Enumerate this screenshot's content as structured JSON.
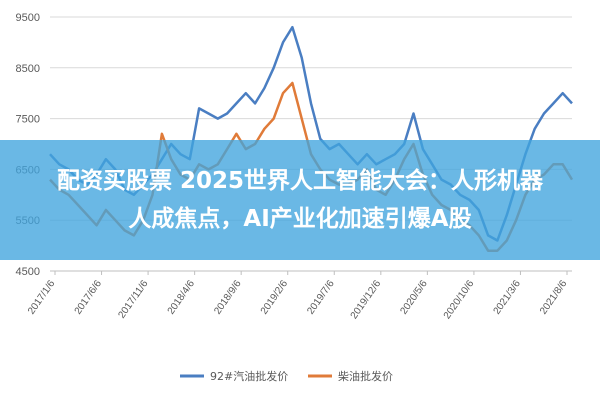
{
  "chart_data": {
    "type": "line",
    "title": "",
    "xlabel": "",
    "ylabel": "",
    "ylim": [
      4500,
      9500
    ],
    "y_ticks": [
      4500,
      5500,
      6500,
      7500,
      8500,
      9500
    ],
    "x_tick_labels": [
      "2017/1/6",
      "2017/6/6",
      "2017/11/6",
      "2018/4/6",
      "2018/9/6",
      "2019/2/6",
      "2019/7/6",
      "2019/12/6",
      "2020/5/6",
      "2020/10/6",
      "2021/3/6",
      "2021/8/6"
    ],
    "x_range": [
      0,
      56
    ],
    "grid": "horizontal",
    "legend_position": "bottom",
    "series": [
      {
        "name": "92#汽油批发价",
        "color": "#4a7ec2",
        "x": [
          0,
          1,
          2,
          3,
          4,
          5,
          6,
          7,
          8,
          9,
          10,
          11,
          12,
          13,
          14,
          15,
          16,
          17,
          18,
          19,
          20,
          21,
          22,
          23,
          24,
          25,
          26,
          27,
          28,
          29,
          30,
          31,
          32,
          33,
          34,
          35,
          36,
          37,
          38,
          39,
          40,
          41,
          42,
          43,
          44,
          45,
          46,
          47,
          48,
          49,
          50,
          51,
          52,
          53,
          54,
          55,
          56
        ],
        "values": [
          6800,
          6600,
          6500,
          6300,
          6200,
          6400,
          6700,
          6500,
          6100,
          6000,
          6200,
          6400,
          6700,
          7000,
          6800,
          6700,
          7700,
          7600,
          7500,
          7600,
          7800,
          8000,
          7800,
          8100,
          8500,
          9000,
          9300,
          8700,
          7800,
          7100,
          6900,
          7000,
          6800,
          6600,
          6800,
          6600,
          6700,
          6800,
          7000,
          7600,
          6900,
          6600,
          6300,
          6200,
          6000,
          5900,
          5700,
          5200,
          5100,
          5600,
          6200,
          6800,
          7300,
          7600,
          7800,
          8000,
          7800
        ]
      },
      {
        "name": "柴油批发价",
        "color": "#e07b39",
        "x": [
          0,
          1,
          2,
          3,
          4,
          5,
          6,
          7,
          8,
          9,
          10,
          11,
          12,
          13,
          14,
          15,
          16,
          17,
          18,
          19,
          20,
          21,
          22,
          23,
          24,
          25,
          26,
          27,
          28,
          29,
          30,
          31,
          32,
          33,
          34,
          35,
          36,
          37,
          38,
          39,
          40,
          41,
          42,
          43,
          44,
          45,
          46,
          47,
          48,
          49,
          50,
          51,
          52,
          53,
          54,
          55,
          56
        ],
        "values": [
          6300,
          6100,
          6000,
          5800,
          5600,
          5400,
          5700,
          5500,
          5300,
          5200,
          5500,
          6000,
          7200,
          6700,
          6400,
          6300,
          6600,
          6500,
          6600,
          6900,
          7200,
          6900,
          7000,
          7300,
          7500,
          8000,
          8200,
          7500,
          6800,
          6500,
          6300,
          6200,
          6200,
          6300,
          6500,
          6100,
          6000,
          6300,
          6700,
          7000,
          6400,
          6000,
          5800,
          5700,
          5500,
          5400,
          5200,
          4900,
          4900,
          5100,
          5500,
          6000,
          6300,
          6400,
          6600,
          6600,
          6300
        ]
      }
    ]
  },
  "banner": {
    "line1": "配资买股票  2025世界人工智能大会：人形机器",
    "line2": "人成焦点，AI产业化加速引爆A股"
  }
}
